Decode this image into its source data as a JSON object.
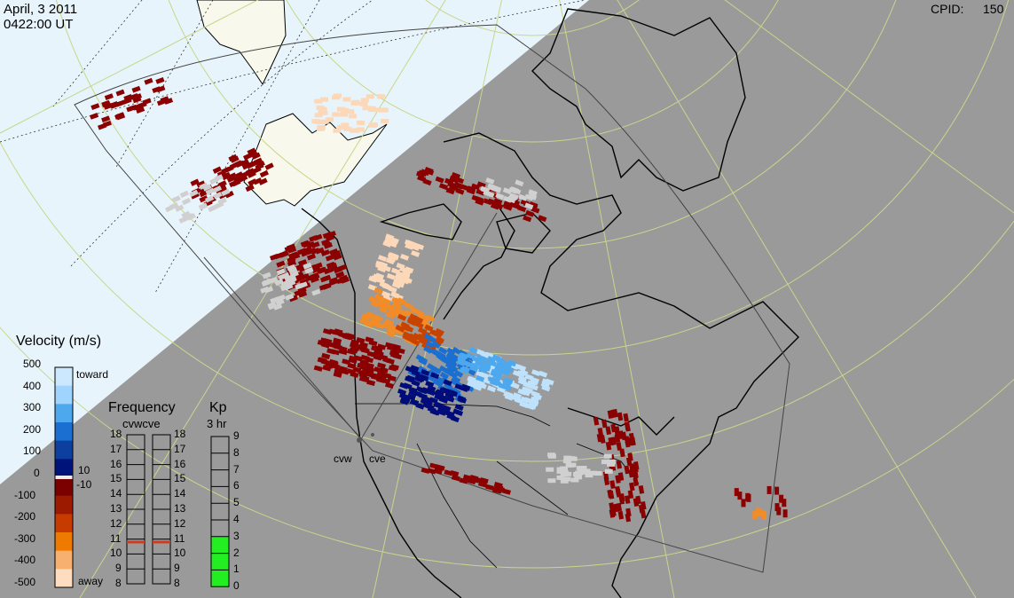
{
  "header": {
    "date": "April, 3 2011",
    "time": "0422:00 UT",
    "cpid_label": "CPID:",
    "cpid_value": "150"
  },
  "velocity_scale": {
    "title": "Velocity (m/s)",
    "ticks": [
      "500",
      "400",
      "300",
      "200",
      "100",
      "0",
      "-100",
      "-200",
      "-300",
      "-400",
      "-500"
    ],
    "toward_label": "toward",
    "away_label": "away",
    "threshold_pos": "10",
    "threshold_neg": "-10",
    "colors": [
      "#cce8ff",
      "#9fd4ff",
      "#4da8ee",
      "#1a6fd0",
      "#0c3f9e",
      "#00137a",
      "#7a0000",
      "#9c1a00",
      "#c73a00",
      "#ee7a00",
      "#f7b070",
      "#fddcc0"
    ]
  },
  "frequency_panel": {
    "title": "Frequency",
    "subtitle": "cvwcve",
    "ticks": [
      "18",
      "17",
      "16",
      "15",
      "14",
      "13",
      "12",
      "11",
      "10",
      "9",
      "8"
    ],
    "cvw_value": 10.8,
    "cve_value": 10.8,
    "marker_color": "#d23c1e"
  },
  "kp_panel": {
    "title": "Kp",
    "subtitle": "3 hr",
    "ticks": [
      "9",
      "8",
      "7",
      "6",
      "5",
      "4",
      "3",
      "2",
      "1",
      "0"
    ],
    "value": 3,
    "fill_color": "#22ee22"
  },
  "radars": {
    "cvw": "cvw",
    "cve": "cve"
  },
  "colors": {
    "night": "#9a9a9a",
    "day": "#e8f4fb",
    "land_day": "#f8f8ec",
    "grid": "#c8d68a",
    "away": "#8b0000",
    "toward": "#000c7a",
    "ground_scatter": "#d0d0d0",
    "kp_fill": "#22ee22"
  }
}
